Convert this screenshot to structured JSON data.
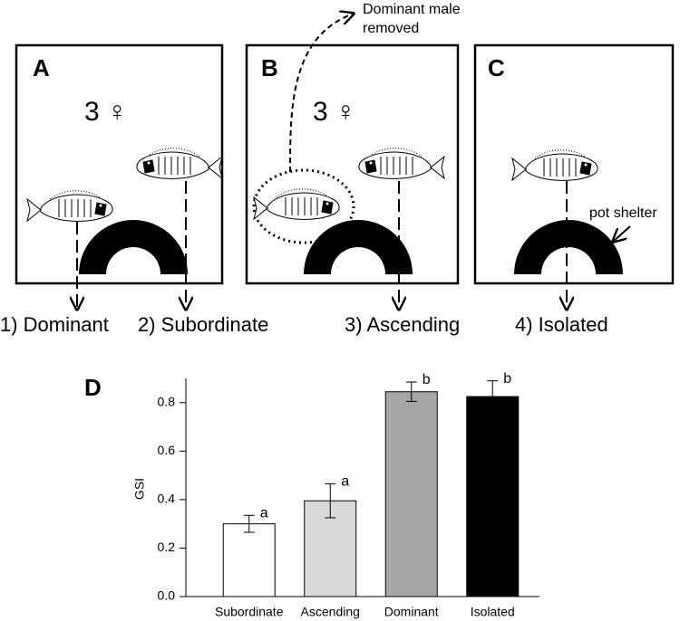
{
  "panels": [
    {
      "label": "A",
      "females": "3 ♀"
    },
    {
      "label": "B",
      "females": "3 ♀",
      "note": [
        "Dominant male",
        "removed"
      ]
    },
    {
      "label": "C",
      "shelter_label": "pot shelter"
    }
  ],
  "groups": [
    "1) Dominant",
    "2) Subordinate",
    "3) Ascending",
    "4) Isolated"
  ],
  "chart_data": {
    "type": "bar",
    "panel_label": "D",
    "y_label": "GSI",
    "categories": [
      "Subordinate",
      "Ascending",
      "Dominant",
      "Isolated"
    ],
    "values": [
      0.3,
      0.395,
      0.845,
      0.825
    ],
    "errors": [
      0.035,
      0.07,
      0.04,
      0.065
    ],
    "letters": [
      "a",
      "a",
      "b",
      "b"
    ],
    "colors": [
      "#ffffff",
      "#d9d9d9",
      "#a6a6a6",
      "#000000"
    ],
    "ylim": [
      0,
      0.9
    ],
    "yticks": [
      {
        "value": 0,
        "label": "0.0"
      },
      0.2,
      0.4,
      0.6,
      0.8
    ]
  }
}
